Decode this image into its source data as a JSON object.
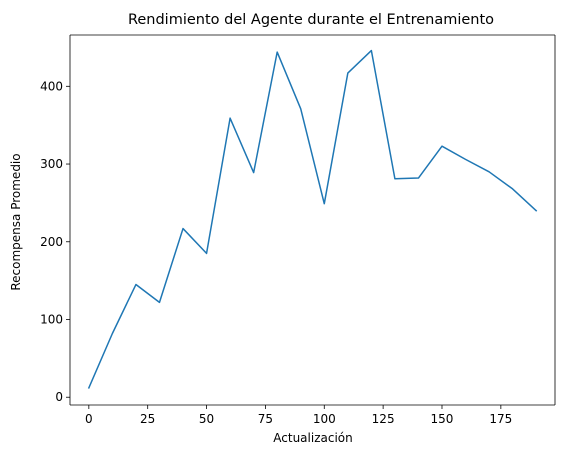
{
  "chart_data": {
    "type": "line",
    "title": "Rendimiento del Agente durante el Entrenamiento",
    "xlabel": "Actualización",
    "ylabel": "Recompensa Promedio",
    "xlim": [
      -8,
      198
    ],
    "ylim": [
      -10,
      466
    ],
    "xticks": [
      0,
      25,
      50,
      75,
      100,
      125,
      150,
      175
    ],
    "yticks": [
      0,
      100,
      200,
      300,
      400
    ],
    "grid": false,
    "series": [
      {
        "color": "#1f77b4",
        "x": [
          0,
          10,
          20,
          30,
          40,
          50,
          60,
          70,
          80,
          90,
          100,
          110,
          120,
          130,
          140,
          150,
          160,
          170,
          180,
          190
        ],
        "y": [
          12,
          82,
          145,
          122,
          217,
          185,
          359,
          289,
          444,
          371,
          249,
          417,
          446,
          281,
          282,
          323,
          306,
          290,
          268,
          240
        ]
      }
    ]
  }
}
